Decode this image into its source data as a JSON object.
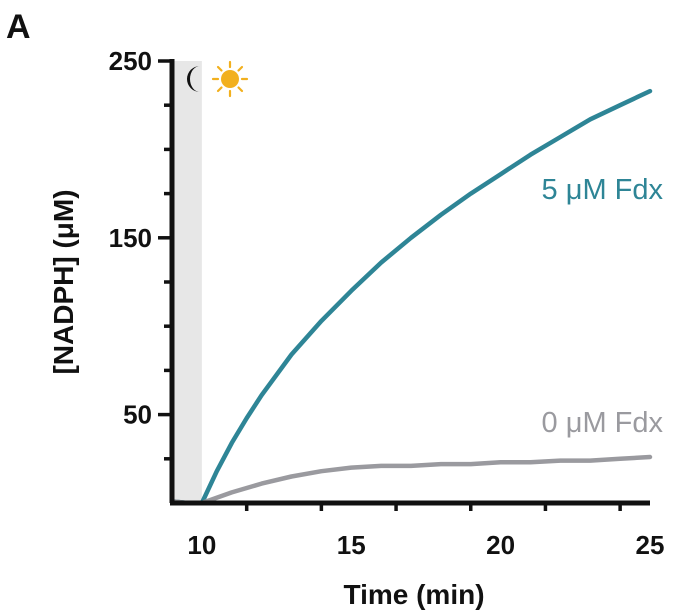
{
  "panel_letter": "A",
  "icons": {
    "dark_phase": "moon-icon",
    "light_phase": "sun-icon"
  },
  "chart_data": {
    "type": "line",
    "xlabel": "Time (min)",
    "ylabel": "[NADPH] (μM)",
    "xlim": [
      9,
      25
    ],
    "ylim": [
      0,
      250
    ],
    "xticks": [
      10,
      15,
      20,
      25
    ],
    "yticks": [
      50,
      150,
      250
    ],
    "dark_period": [
      9,
      10
    ],
    "series": [
      {
        "name": "5 μM Fdx",
        "color": "#2e8596",
        "x": [
          9,
          9.5,
          10,
          10.5,
          11,
          11.5,
          12,
          13,
          14,
          15,
          16,
          17,
          18,
          19,
          20,
          21,
          22,
          23,
          24,
          25
        ],
        "y": [
          1,
          0,
          0,
          18,
          34,
          48,
          61,
          84,
          103,
          120,
          136,
          150,
          163,
          175,
          186,
          197,
          207,
          217,
          225,
          233
        ]
      },
      {
        "name": "0 μM Fdx",
        "color": "#9a9a9f",
        "x": [
          9,
          9.5,
          10,
          11,
          12,
          13,
          14,
          15,
          16,
          17,
          18,
          19,
          20,
          21,
          22,
          23,
          24,
          25
        ],
        "y": [
          1,
          0,
          0,
          6,
          11,
          15,
          18,
          20,
          21,
          21,
          22,
          22,
          23,
          23,
          24,
          24,
          25,
          26
        ]
      }
    ]
  }
}
